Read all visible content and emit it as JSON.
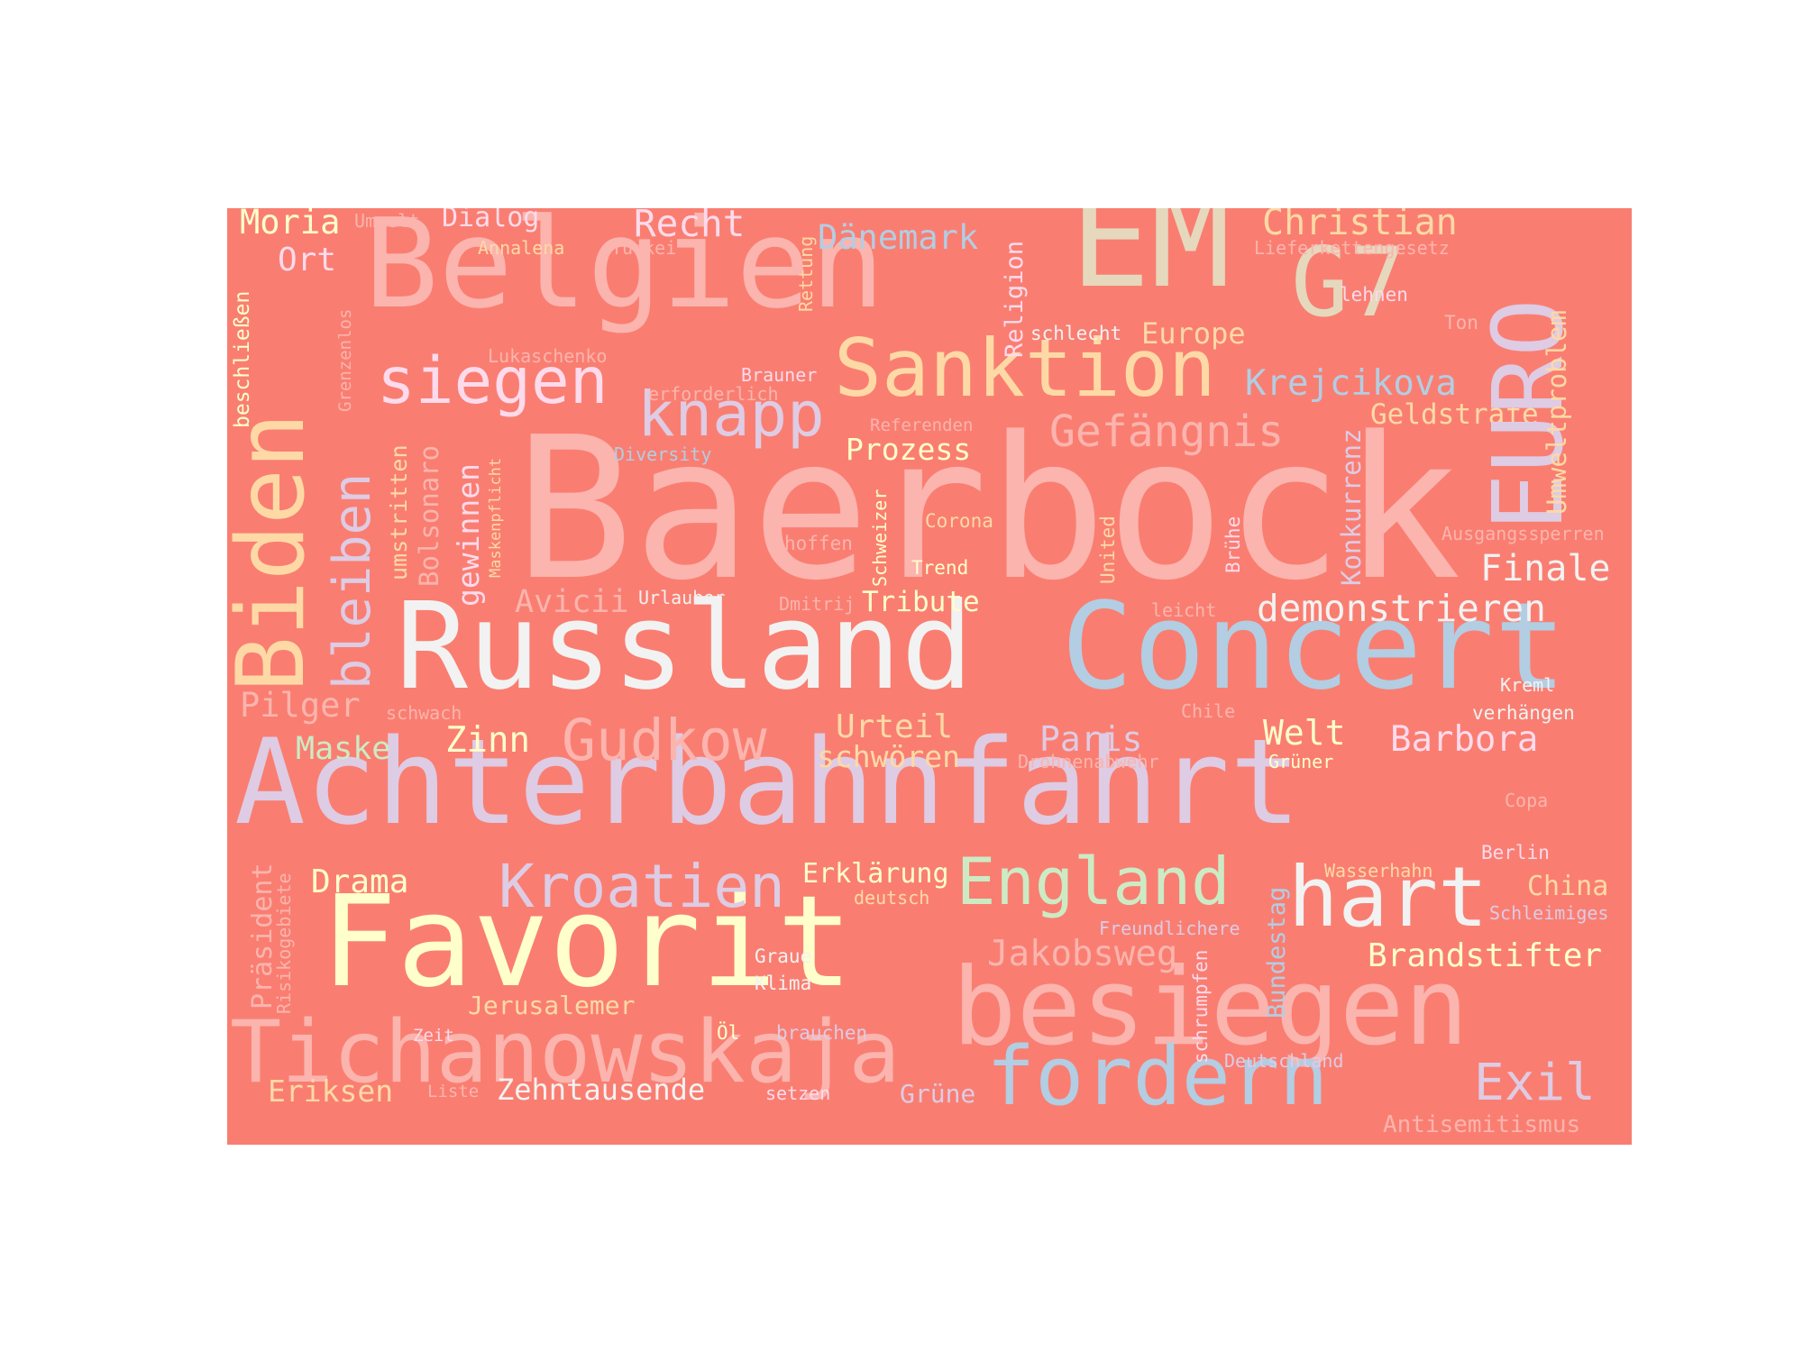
{
  "background_color": "#f97e71",
  "palette": [
    "#fbb4ae",
    "#b3cde3",
    "#ccebc5",
    "#decbe4",
    "#fed9a6",
    "#ffffcc",
    "#e5d8bd",
    "#fddaec",
    "#f2f2f2"
  ],
  "words": [
    {
      "id": "baerbock",
      "text": "Baerbock",
      "color": "#fbb4ae"
    },
    {
      "id": "achterbahnfahrt",
      "text": "Achterbahnfahrt",
      "color": "#decbe4"
    },
    {
      "id": "russland",
      "text": "Russland",
      "color": "#f2f2f2"
    },
    {
      "id": "concert",
      "text": "Concert",
      "color": "#b3cde3"
    },
    {
      "id": "favorit",
      "text": "Favorit",
      "color": "#ffffcc"
    },
    {
      "id": "besiegen",
      "text": "besiegen",
      "color": "#fbb4ae"
    },
    {
      "id": "belgien",
      "text": "Belgien",
      "color": "#fbb4ae"
    },
    {
      "id": "tichanowskaja",
      "text": "Tichanowskaja",
      "color": "#fbb4ae"
    },
    {
      "id": "biden",
      "text": "Biden",
      "color": "#fed9a6"
    },
    {
      "id": "em",
      "text": "EM",
      "color": "#e5d8bd"
    },
    {
      "id": "g7",
      "text": "G7",
      "color": "#e5d8bd"
    },
    {
      "id": "euro",
      "text": "EURO",
      "color": "#decbe4"
    },
    {
      "id": "sanktion",
      "text": "Sanktion",
      "color": "#fed9a6"
    },
    {
      "id": "fordern",
      "text": "fordern",
      "color": "#b3cde3"
    },
    {
      "id": "hart",
      "text": "hart",
      "color": "#f2f2f2"
    },
    {
      "id": "england",
      "text": "England",
      "color": "#ccebc5"
    },
    {
      "id": "siegen",
      "text": "siegen",
      "color": "#fddaec"
    },
    {
      "id": "knapp",
      "text": "knapp",
      "color": "#decbe4"
    },
    {
      "id": "kroatien",
      "text": "Kroatien",
      "color": "#decbe4"
    },
    {
      "id": "gudkow",
      "text": "Gudkow",
      "color": "#fbb4ae"
    },
    {
      "id": "bleiben",
      "text": "bleiben",
      "color": "#decbe4"
    },
    {
      "id": "gefaengnis",
      "text": "Gefängnis",
      "color": "#fbb4ae"
    },
    {
      "id": "exil",
      "text": "Exil",
      "color": "#decbe4"
    },
    {
      "id": "jakobsweg",
      "text": "Jakobsweg",
      "color": "#fbb4ae"
    },
    {
      "id": "demonstrieren",
      "text": "demonstrieren",
      "color": "#f2f2f2"
    },
    {
      "id": "christian",
      "text": "Christian",
      "color": "#fed9a6"
    },
    {
      "id": "krejcikova",
      "text": "Krejcikova",
      "color": "#b3cde3"
    },
    {
      "id": "finale",
      "text": "Finale",
      "color": "#f2f2f2"
    },
    {
      "id": "barbora",
      "text": "Barbora",
      "color": "#fddaec"
    },
    {
      "id": "brandstifter",
      "text": "Brandstifter",
      "color": "#ffffcc"
    },
    {
      "id": "recht",
      "text": "Recht",
      "color": "#fddaec"
    },
    {
      "id": "daenemark",
      "text": "Dänemark",
      "color": "#b3cde3"
    },
    {
      "id": "moria",
      "text": "Moria",
      "color": "#ffffcc"
    },
    {
      "id": "dialog",
      "text": "Dialog",
      "color": "#fddaec"
    },
    {
      "id": "ort",
      "text": "Ort",
      "color": "#fddaec"
    },
    {
      "id": "pilger",
      "text": "Pilger",
      "color": "#fbb4ae"
    },
    {
      "id": "maske",
      "text": "Maske",
      "color": "#ccebc5"
    },
    {
      "id": "zinn",
      "text": "Zinn",
      "color": "#ffffcc"
    },
    {
      "id": "urteil",
      "text": "Urteil",
      "color": "#fed9a6"
    },
    {
      "id": "schwoeren",
      "text": "schwören",
      "color": "#fed9a6"
    },
    {
      "id": "paris",
      "text": "Paris",
      "color": "#decbe4"
    },
    {
      "id": "welt",
      "text": "Welt",
      "color": "#ffffcc"
    },
    {
      "id": "drama",
      "text": "Drama",
      "color": "#ffffcc"
    },
    {
      "id": "erklaerung",
      "text": "Erklärung",
      "color": "#ffffcc"
    },
    {
      "id": "china",
      "text": "China",
      "color": "#fed9a6"
    },
    {
      "id": "eriksen",
      "text": "Eriksen",
      "color": "#fed9a6"
    },
    {
      "id": "zehntausende",
      "text": "Zehntausende",
      "color": "#f2f2f2"
    },
    {
      "id": "gruene",
      "text": "Grüne",
      "color": "#decbe4"
    },
    {
      "id": "jerusalemer",
      "text": "Jerusalemer",
      "color": "#fed9a6"
    },
    {
      "id": "antisemitismus",
      "text": "Antisemitismus",
      "color": "#fbb4ae"
    },
    {
      "id": "prozess",
      "text": "Prozess",
      "color": "#ffffcc"
    },
    {
      "id": "tribute",
      "text": "Tribute",
      "color": "#ffffcc"
    },
    {
      "id": "avicii",
      "text": "Avicii",
      "color": "#fbb4ae"
    },
    {
      "id": "europe",
      "text": "Europe",
      "color": "#fed9a6"
    },
    {
      "id": "geldstrafe",
      "text": "Geldstrafe",
      "color": "#fed9a6"
    },
    {
      "id": "annalena",
      "text": "Annalena",
      "color": "#fed9a6"
    },
    {
      "id": "tuerkei",
      "text": "Türkei",
      "color": "#fbb4ae"
    },
    {
      "id": "umwelt",
      "text": "Umwelt",
      "color": "#fbb4ae"
    },
    {
      "id": "lieferkettengesetz",
      "text": "Lieferkettengesetz",
      "color": "#fbb4ae"
    },
    {
      "id": "lehnen",
      "text": "lehnen",
      "color": "#fddaec"
    },
    {
      "id": "ton",
      "text": "Ton",
      "color": "#fbb4ae"
    },
    {
      "id": "schlecht",
      "text": "schlecht",
      "color": "#f2f2f2"
    },
    {
      "id": "lukaschenko",
      "text": "Lukaschenko",
      "color": "#fbb4ae"
    },
    {
      "id": "brauner",
      "text": "Brauner",
      "color": "#fddaec"
    },
    {
      "id": "erforderlich",
      "text": "erforderlich",
      "color": "#fbb4ae"
    },
    {
      "id": "referenden",
      "text": "Referenden",
      "color": "#fbb4ae"
    },
    {
      "id": "diversity",
      "text": "Diversity",
      "color": "#b3cde3"
    },
    {
      "id": "corona",
      "text": "Corona",
      "color": "#fed9a6"
    },
    {
      "id": "hoffen",
      "text": "hoffen",
      "color": "#fbb4ae"
    },
    {
      "id": "trend",
      "text": "Trend",
      "color": "#ffffcc"
    },
    {
      "id": "ausgangssperren",
      "text": "Ausgangssperren",
      "color": "#fbb4ae"
    },
    {
      "id": "urlauber",
      "text": "Urlauber",
      "color": "#f2f2f2"
    },
    {
      "id": "dmitrij",
      "text": "Dmitrij",
      "color": "#fbb4ae"
    },
    {
      "id": "leicht",
      "text": "leicht",
      "color": "#fbb4ae"
    },
    {
      "id": "kreml",
      "text": "Kreml",
      "color": "#f2f2f2"
    },
    {
      "id": "verhaengen",
      "text": "verhängen",
      "color": "#f2f2f2"
    },
    {
      "id": "schwach",
      "text": "schwach",
      "color": "#fbb4ae"
    },
    {
      "id": "chile",
      "text": "Chile",
      "color": "#fbb4ae"
    },
    {
      "id": "drohnenabwehr",
      "text": "Drohnenabwehr",
      "color": "#fbb4ae"
    },
    {
      "id": "gruener",
      "text": "Grüner",
      "color": "#ffffcc"
    },
    {
      "id": "copa",
      "text": "Copa",
      "color": "#fbb4ae"
    },
    {
      "id": "berlin",
      "text": "Berlin",
      "color": "#fddaec"
    },
    {
      "id": "wasserhahn",
      "text": "Wasserhahn",
      "color": "#fed9a6"
    },
    {
      "id": "deutsch",
      "text": "deutsch",
      "color": "#fed9a6"
    },
    {
      "id": "freundlichere",
      "text": "Freundlichere",
      "color": "#decbe4"
    },
    {
      "id": "schleimiges",
      "text": "Schleimiges",
      "color": "#decbe4"
    },
    {
      "id": "graue",
      "text": "Graue",
      "color": "#f2f2f2"
    },
    {
      "id": "klima",
      "text": "Klima",
      "color": "#f2f2f2"
    },
    {
      "id": "zeit",
      "text": "Zeit",
      "color": "#fddaec"
    },
    {
      "id": "oel",
      "text": "Öl",
      "color": "#ffffcc"
    },
    {
      "id": "brauchen",
      "text": "brauchen",
      "color": "#decbe4"
    },
    {
      "id": "deutschland",
      "text": "Deutschland",
      "color": "#decbe4"
    },
    {
      "id": "liste",
      "text": "Liste",
      "color": "#fbb4ae"
    },
    {
      "id": "setzen",
      "text": "setzen",
      "color": "#fddaec"
    },
    {
      "id": "beschliessen",
      "text": "beschließen",
      "color": "#ffffcc"
    },
    {
      "id": "grenzenlos",
      "text": "Grenzenlos",
      "color": "#fbb4ae"
    },
    {
      "id": "umstritten",
      "text": "umstritten",
      "color": "#fed9a6"
    },
    {
      "id": "bolsonaro",
      "text": "Bolsonaro",
      "color": "#fbb4ae"
    },
    {
      "id": "gewinnen",
      "text": "gewinnen",
      "color": "#fddaec"
    },
    {
      "id": "maskenpflicht",
      "text": "Maskenpflicht",
      "color": "#fed9a6"
    },
    {
      "id": "rettung",
      "text": "Rettung",
      "color": "#fed9a6"
    },
    {
      "id": "religion",
      "text": "Religion",
      "color": "#fddaec"
    },
    {
      "id": "umweltproblem",
      "text": "Umweltproblem",
      "color": "#fed9a6"
    },
    {
      "id": "konkurrenz",
      "text": "Konkurrenz",
      "color": "#decbe4"
    },
    {
      "id": "schweizer",
      "text": "Schweizer",
      "color": "#ffffcc"
    },
    {
      "id": "united",
      "text": "United",
      "color": "#fed9a6"
    },
    {
      "id": "bruehe",
      "text": "Brühe",
      "color": "#fddaec"
    },
    {
      "id": "praesident",
      "text": "Präsident",
      "color": "#fbb4ae"
    },
    {
      "id": "risikogebiete",
      "text": "Risikogebiete",
      "color": "#fbb4ae"
    },
    {
      "id": "bundestag",
      "text": "Bundestag",
      "color": "#b3cde3"
    },
    {
      "id": "schrumpfen",
      "text": "schrumpfen",
      "color": "#fddaec"
    }
  ]
}
